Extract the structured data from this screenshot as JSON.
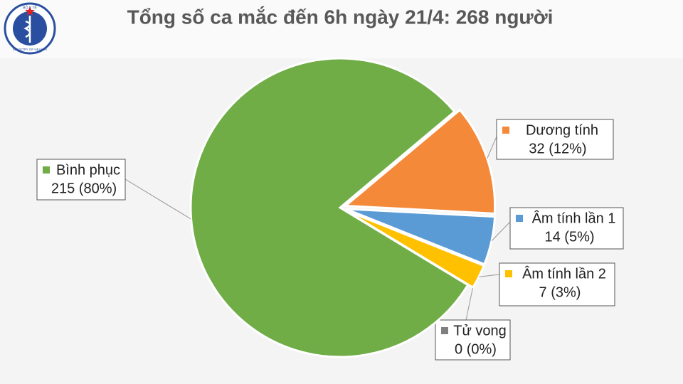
{
  "logo": {
    "top": "BỘ Y TẾ",
    "bottom": "MINISTRY OF HEALTH"
  },
  "chart_data": {
    "type": "pie",
    "title": "Tổng số ca mắc đến 6h ngày 21/4: 268 người",
    "categories": [
      "Dương tính",
      "Âm tính lần 1",
      "Âm tính lần 2",
      "Tử vong",
      "Bình phục"
    ],
    "values": [
      32,
      14,
      7,
      0,
      215
    ],
    "value_labels": [
      "32 (12%)",
      "14 (5%)",
      "7 (3%)",
      "0 (0%)",
      "215 (80%)"
    ],
    "colors": [
      "#f5893a",
      "#5b9bd5",
      "#ffc000",
      "#808080",
      "#70ad47"
    ]
  }
}
